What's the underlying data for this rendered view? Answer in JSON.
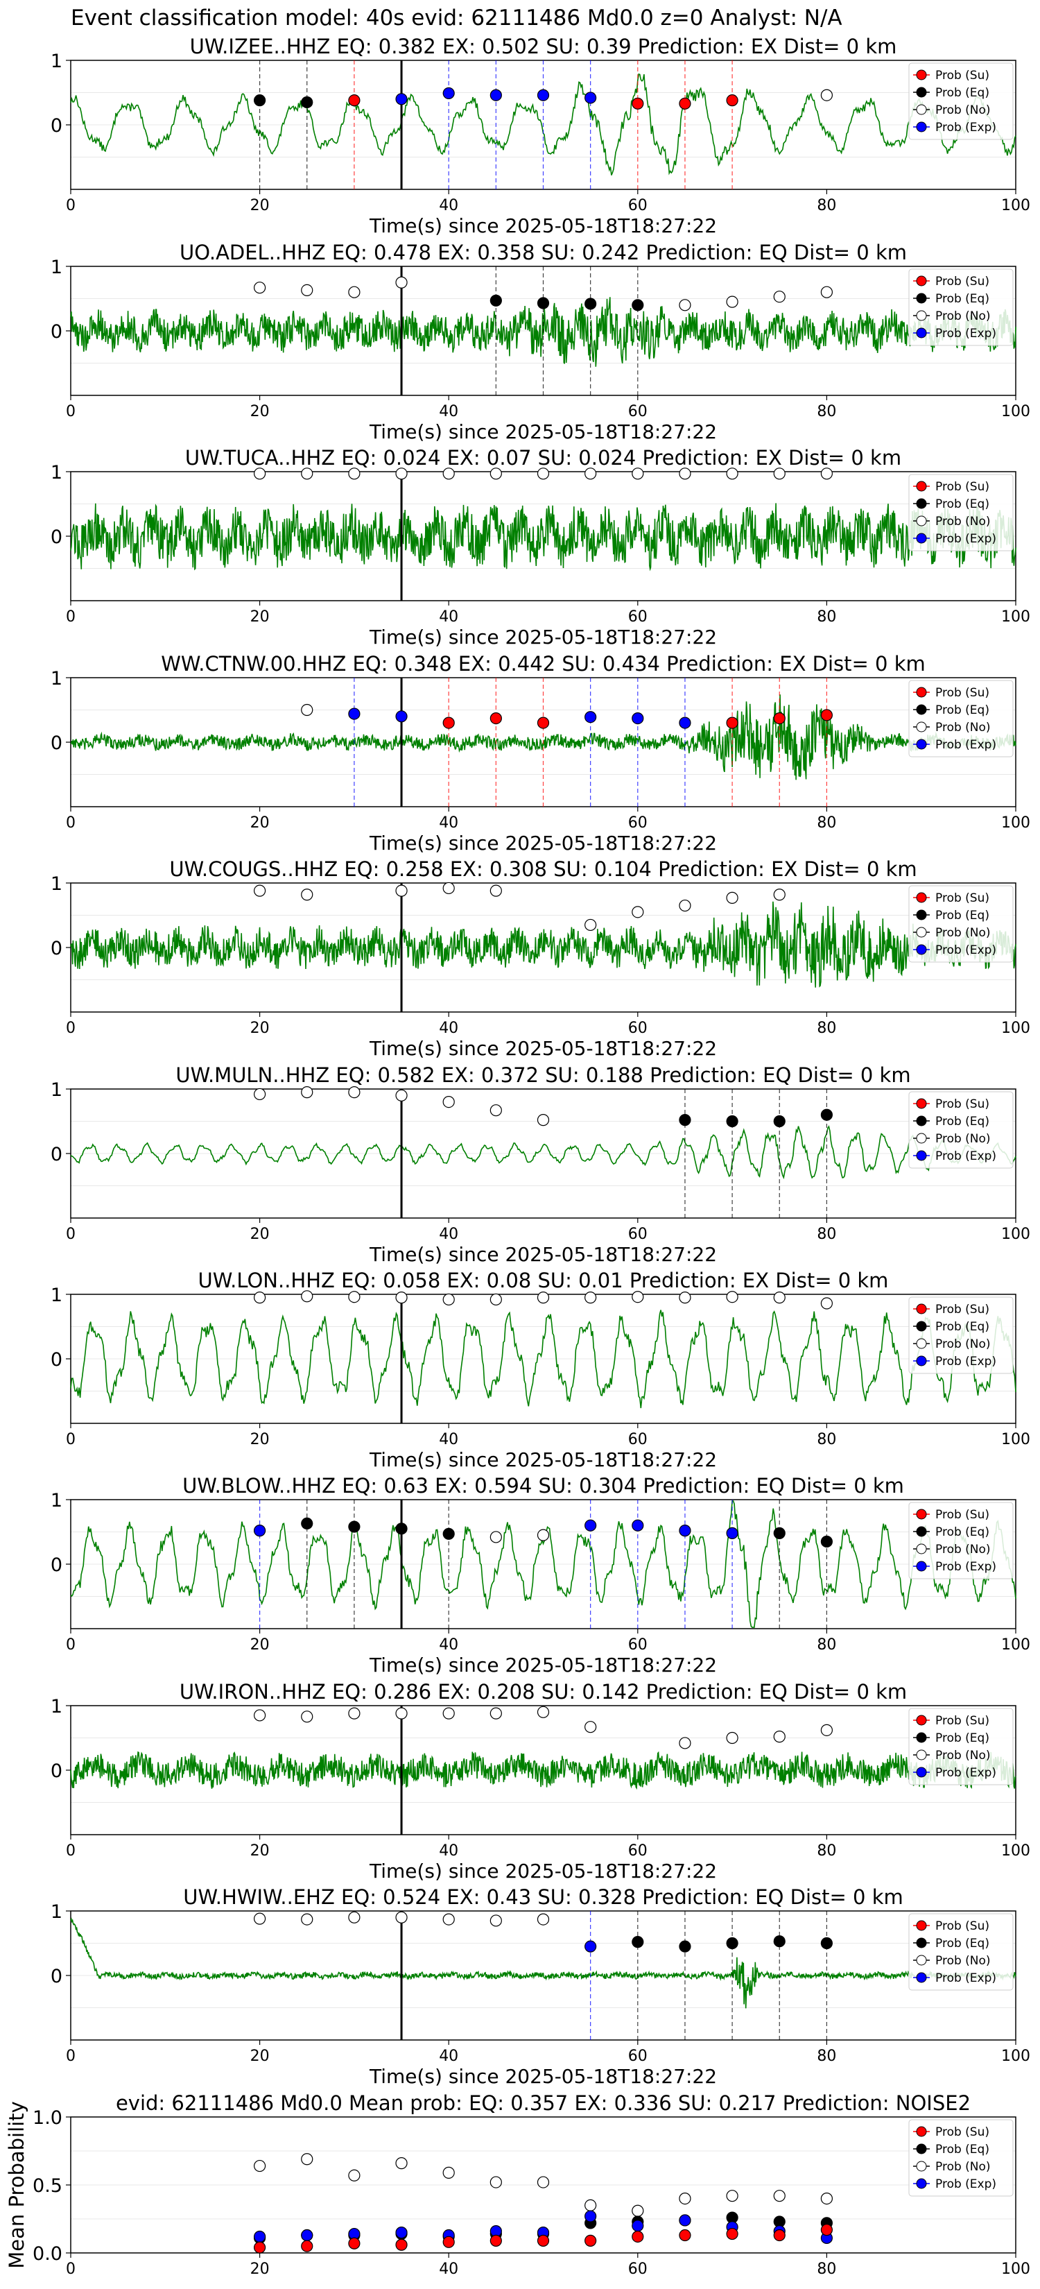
{
  "header": "Event classification model: 40s evid: 62111486 Md0.0 z=0 Analyst: N/A",
  "legend_labels": [
    "Prob (Su)",
    "Prob (Eq)",
    "Prob (No)",
    "Prob (Exp)"
  ],
  "colors": {
    "su": "#ff0000",
    "eq": "#000000",
    "no": "#ffffff",
    "exp": "#0000ff",
    "trace": "#008000",
    "pick": "#000000"
  },
  "chart_data": [
    {
      "type": "line",
      "title": "UW.IZEE..HHZ   EQ: 0.382  EX: 0.502  SU: 0.39   Prediction: EX    Dist= 0 km",
      "xlabel": "Time(s) since 2025-05-18T18:27:22",
      "xlim": [
        0,
        100
      ],
      "ylim": [
        -1,
        1
      ],
      "xticks": [
        "0",
        "20",
        "40",
        "60",
        "80",
        "100"
      ],
      "yticks": [
        "1",
        "0"
      ],
      "trace": {
        "style": "lowfreq",
        "amp": 0.35,
        "period": 6,
        "burst_start": 50,
        "burst_end": 75,
        "burst_amp": 0.3
      },
      "pick_time": 35,
      "points": [
        {
          "x": 20,
          "y": 0.38,
          "cls": "eq"
        },
        {
          "x": 25,
          "y": 0.35,
          "cls": "eq"
        },
        {
          "x": 30,
          "y": 0.38,
          "cls": "su"
        },
        {
          "x": 35,
          "y": 0.4,
          "cls": "exp"
        },
        {
          "x": 40,
          "y": 0.49,
          "cls": "exp"
        },
        {
          "x": 45,
          "y": 0.46,
          "cls": "exp"
        },
        {
          "x": 50,
          "y": 0.46,
          "cls": "exp"
        },
        {
          "x": 55,
          "y": 0.42,
          "cls": "exp"
        },
        {
          "x": 60,
          "y": 0.33,
          "cls": "su"
        },
        {
          "x": 65,
          "y": 0.33,
          "cls": "su"
        },
        {
          "x": 70,
          "y": 0.38,
          "cls": "su"
        },
        {
          "x": 80,
          "y": 0.46,
          "cls": "no"
        }
      ]
    },
    {
      "type": "line",
      "title": "UO.ADEL..HHZ   EQ: 0.478  EX: 0.358  SU: 0.242   Prediction: EQ    Dist= 0 km",
      "xlabel": "Time(s) since 2025-05-18T18:27:22",
      "xlim": [
        0,
        100
      ],
      "ylim": [
        -1,
        1
      ],
      "xticks": [
        "0",
        "20",
        "40",
        "60",
        "80",
        "100"
      ],
      "yticks": [
        "1",
        "0"
      ],
      "trace": {
        "style": "noise",
        "amp": 0.3,
        "period": 3,
        "burst_start": 45,
        "burst_end": 65,
        "burst_amp": 0.2
      },
      "pick_time": 35,
      "points": [
        {
          "x": 20,
          "y": 0.67,
          "cls": "no"
        },
        {
          "x": 25,
          "y": 0.63,
          "cls": "no"
        },
        {
          "x": 30,
          "y": 0.6,
          "cls": "no"
        },
        {
          "x": 35,
          "y": 0.75,
          "cls": "no"
        },
        {
          "x": 45,
          "y": 0.47,
          "cls": "eq"
        },
        {
          "x": 50,
          "y": 0.43,
          "cls": "eq"
        },
        {
          "x": 55,
          "y": 0.42,
          "cls": "eq"
        },
        {
          "x": 60,
          "y": 0.4,
          "cls": "eq"
        },
        {
          "x": 65,
          "y": 0.4,
          "cls": "no"
        },
        {
          "x": 70,
          "y": 0.45,
          "cls": "no"
        },
        {
          "x": 75,
          "y": 0.53,
          "cls": "no"
        },
        {
          "x": 80,
          "y": 0.6,
          "cls": "no"
        }
      ]
    },
    {
      "type": "line",
      "title": "UW.TUCA..HHZ   EQ: 0.024  EX: 0.07  SU: 0.024   Prediction: EX    Dist= 0 km",
      "xlabel": "Time(s) since 2025-05-18T18:27:22",
      "xlim": [
        0,
        100
      ],
      "ylim": [
        -1,
        1
      ],
      "xticks": [
        "0",
        "20",
        "40",
        "60",
        "80",
        "100"
      ],
      "yticks": [
        "1",
        "0"
      ],
      "trace": {
        "style": "noise",
        "amp": 0.45,
        "period": 3,
        "burst_start": 0,
        "burst_end": 0,
        "burst_amp": 0
      },
      "pick_time": 35,
      "points": [
        {
          "x": 20,
          "y": 0.97,
          "cls": "no"
        },
        {
          "x": 25,
          "y": 0.97,
          "cls": "no"
        },
        {
          "x": 30,
          "y": 0.97,
          "cls": "no"
        },
        {
          "x": 35,
          "y": 0.97,
          "cls": "no"
        },
        {
          "x": 40,
          "y": 0.97,
          "cls": "no"
        },
        {
          "x": 45,
          "y": 0.97,
          "cls": "no"
        },
        {
          "x": 50,
          "y": 0.97,
          "cls": "no"
        },
        {
          "x": 55,
          "y": 0.97,
          "cls": "no"
        },
        {
          "x": 60,
          "y": 0.97,
          "cls": "no"
        },
        {
          "x": 65,
          "y": 0.97,
          "cls": "no"
        },
        {
          "x": 70,
          "y": 0.97,
          "cls": "no"
        },
        {
          "x": 75,
          "y": 0.97,
          "cls": "no"
        },
        {
          "x": 80,
          "y": 0.97,
          "cls": "no"
        }
      ]
    },
    {
      "type": "line",
      "title": "WW.CTNW.00.HHZ   EQ: 0.348  EX: 0.442  SU: 0.434   Prediction: EX    Dist= 0 km",
      "xlabel": "Time(s) since 2025-05-18T18:27:22",
      "xlim": [
        0,
        100
      ],
      "ylim": [
        -1,
        1
      ],
      "xticks": [
        "0",
        "20",
        "40",
        "60",
        "80",
        "100"
      ],
      "yticks": [
        "1",
        "0"
      ],
      "trace": {
        "style": "noise",
        "amp": 0.12,
        "period": 4,
        "burst_start": 65,
        "burst_end": 85,
        "burst_amp": 0.55
      },
      "pick_time": 35,
      "points": [
        {
          "x": 25,
          "y": 0.5,
          "cls": "no"
        },
        {
          "x": 30,
          "y": 0.44,
          "cls": "exp"
        },
        {
          "x": 35,
          "y": 0.4,
          "cls": "exp"
        },
        {
          "x": 40,
          "y": 0.3,
          "cls": "su"
        },
        {
          "x": 45,
          "y": 0.37,
          "cls": "su"
        },
        {
          "x": 50,
          "y": 0.3,
          "cls": "su"
        },
        {
          "x": 55,
          "y": 0.39,
          "cls": "exp"
        },
        {
          "x": 60,
          "y": 0.37,
          "cls": "exp"
        },
        {
          "x": 65,
          "y": 0.3,
          "cls": "exp"
        },
        {
          "x": 70,
          "y": 0.3,
          "cls": "su"
        },
        {
          "x": 75,
          "y": 0.37,
          "cls": "su"
        },
        {
          "x": 80,
          "y": 0.42,
          "cls": "su"
        }
      ]
    },
    {
      "type": "line",
      "title": "UW.COUGS..HHZ   EQ: 0.258  EX: 0.308  SU: 0.104   Prediction: EX    Dist= 0 km",
      "xlabel": "Time(s) since 2025-05-18T18:27:22",
      "xlim": [
        0,
        100
      ],
      "ylim": [
        -1,
        1
      ],
      "xticks": [
        "0",
        "20",
        "40",
        "60",
        "80",
        "100"
      ],
      "yticks": [
        "1",
        "0"
      ],
      "trace": {
        "style": "noise",
        "amp": 0.3,
        "period": 3,
        "burst_start": 65,
        "burst_end": 90,
        "burst_amp": 0.35
      },
      "pick_time": 35,
      "points": [
        {
          "x": 20,
          "y": 0.88,
          "cls": "no"
        },
        {
          "x": 25,
          "y": 0.82,
          "cls": "no"
        },
        {
          "x": 35,
          "y": 0.88,
          "cls": "no"
        },
        {
          "x": 40,
          "y": 0.92,
          "cls": "no"
        },
        {
          "x": 45,
          "y": 0.88,
          "cls": "no"
        },
        {
          "x": 55,
          "y": 0.35,
          "cls": "no"
        },
        {
          "x": 60,
          "y": 0.55,
          "cls": "no"
        },
        {
          "x": 65,
          "y": 0.65,
          "cls": "no"
        },
        {
          "x": 70,
          "y": 0.77,
          "cls": "no"
        },
        {
          "x": 75,
          "y": 0.82,
          "cls": "no"
        }
      ]
    },
    {
      "type": "line",
      "title": "UW.MULN..HHZ   EQ: 0.582  EX: 0.372  SU: 0.188   Prediction: EQ    Dist= 0 km",
      "xlabel": "Time(s) since 2025-05-18T18:27:22",
      "xlim": [
        0,
        100
      ],
      "ylim": [
        -1,
        1
      ],
      "xticks": [
        "0",
        "20",
        "40",
        "60",
        "80",
        "100"
      ],
      "yticks": [
        "1",
        "0"
      ],
      "trace": {
        "style": "lowfreq",
        "amp": 0.12,
        "period": 3,
        "burst_start": 60,
        "burst_end": 95,
        "burst_amp": 0.2
      },
      "pick_time": 35,
      "points": [
        {
          "x": 20,
          "y": 0.92,
          "cls": "no"
        },
        {
          "x": 25,
          "y": 0.95,
          "cls": "no"
        },
        {
          "x": 30,
          "y": 0.95,
          "cls": "no"
        },
        {
          "x": 35,
          "y": 0.9,
          "cls": "no"
        },
        {
          "x": 40,
          "y": 0.8,
          "cls": "no"
        },
        {
          "x": 45,
          "y": 0.67,
          "cls": "no"
        },
        {
          "x": 50,
          "y": 0.52,
          "cls": "no"
        },
        {
          "x": 65,
          "y": 0.52,
          "cls": "eq"
        },
        {
          "x": 70,
          "y": 0.5,
          "cls": "eq"
        },
        {
          "x": 75,
          "y": 0.5,
          "cls": "eq"
        },
        {
          "x": 80,
          "y": 0.6,
          "cls": "eq"
        }
      ]
    },
    {
      "type": "line",
      "title": "UW.LON..HHZ   EQ: 0.058  EX: 0.08  SU: 0.01   Prediction: EX    Dist= 0 km",
      "xlabel": "Time(s) since 2025-05-18T18:27:22",
      "xlim": [
        0,
        100
      ],
      "ylim": [
        -1,
        1
      ],
      "xticks": [
        "0",
        "20",
        "40",
        "60",
        "80",
        "100"
      ],
      "yticks": [
        "1",
        "0"
      ],
      "trace": {
        "style": "lowfreq",
        "amp": 0.55,
        "period": 4,
        "burst_start": 0,
        "burst_end": 0,
        "burst_amp": 0
      },
      "pick_time": 35,
      "points": [
        {
          "x": 20,
          "y": 0.95,
          "cls": "no"
        },
        {
          "x": 25,
          "y": 0.97,
          "cls": "no"
        },
        {
          "x": 30,
          "y": 0.96,
          "cls": "no"
        },
        {
          "x": 35,
          "y": 0.95,
          "cls": "no"
        },
        {
          "x": 40,
          "y": 0.92,
          "cls": "no"
        },
        {
          "x": 45,
          "y": 0.92,
          "cls": "no"
        },
        {
          "x": 50,
          "y": 0.95,
          "cls": "no"
        },
        {
          "x": 55,
          "y": 0.95,
          "cls": "no"
        },
        {
          "x": 60,
          "y": 0.96,
          "cls": "no"
        },
        {
          "x": 65,
          "y": 0.95,
          "cls": "no"
        },
        {
          "x": 70,
          "y": 0.96,
          "cls": "no"
        },
        {
          "x": 75,
          "y": 0.95,
          "cls": "no"
        },
        {
          "x": 80,
          "y": 0.86,
          "cls": "no"
        }
      ]
    },
    {
      "type": "line",
      "title": "UW.BLOW..HHZ   EQ: 0.63  EX: 0.594  SU: 0.304   Prediction: EQ    Dist= 0 km",
      "xlabel": "Time(s) since 2025-05-18T18:27:22",
      "xlim": [
        0,
        100
      ],
      "ylim": [
        -1,
        1
      ],
      "xticks": [
        "0",
        "20",
        "40",
        "60",
        "80",
        "100"
      ],
      "yticks": [
        "1",
        "0"
      ],
      "trace": {
        "style": "lowfreq",
        "amp": 0.5,
        "period": 4,
        "burst_start": 68,
        "burst_end": 75,
        "burst_amp": 0.4
      },
      "pick_time": 35,
      "points": [
        {
          "x": 20,
          "y": 0.52,
          "cls": "exp"
        },
        {
          "x": 25,
          "y": 0.63,
          "cls": "eq"
        },
        {
          "x": 30,
          "y": 0.58,
          "cls": "eq"
        },
        {
          "x": 35,
          "y": 0.55,
          "cls": "eq"
        },
        {
          "x": 40,
          "y": 0.47,
          "cls": "eq"
        },
        {
          "x": 45,
          "y": 0.42,
          "cls": "no"
        },
        {
          "x": 50,
          "y": 0.45,
          "cls": "no"
        },
        {
          "x": 55,
          "y": 0.6,
          "cls": "exp"
        },
        {
          "x": 60,
          "y": 0.6,
          "cls": "exp"
        },
        {
          "x": 65,
          "y": 0.52,
          "cls": "exp"
        },
        {
          "x": 70,
          "y": 0.48,
          "cls": "exp"
        },
        {
          "x": 75,
          "y": 0.48,
          "cls": "eq"
        },
        {
          "x": 80,
          "y": 0.35,
          "cls": "eq"
        }
      ]
    },
    {
      "type": "line",
      "title": "UW.IRON..HHZ   EQ: 0.286  EX: 0.208  SU: 0.142   Prediction: EQ    Dist= 0 km",
      "xlabel": "Time(s) since 2025-05-18T18:27:22",
      "xlim": [
        0,
        100
      ],
      "ylim": [
        -1,
        1
      ],
      "xticks": [
        "0",
        "20",
        "40",
        "60",
        "80",
        "100"
      ],
      "yticks": [
        "1",
        "0"
      ],
      "trace": {
        "style": "noise",
        "amp": 0.25,
        "period": 5,
        "burst_start": 0,
        "burst_end": 0,
        "burst_amp": 0
      },
      "pick_time": 35,
      "points": [
        {
          "x": 20,
          "y": 0.85,
          "cls": "no"
        },
        {
          "x": 25,
          "y": 0.83,
          "cls": "no"
        },
        {
          "x": 30,
          "y": 0.88,
          "cls": "no"
        },
        {
          "x": 35,
          "y": 0.88,
          "cls": "no"
        },
        {
          "x": 40,
          "y": 0.88,
          "cls": "no"
        },
        {
          "x": 45,
          "y": 0.88,
          "cls": "no"
        },
        {
          "x": 50,
          "y": 0.9,
          "cls": "no"
        },
        {
          "x": 55,
          "y": 0.67,
          "cls": "no"
        },
        {
          "x": 65,
          "y": 0.42,
          "cls": "no"
        },
        {
          "x": 70,
          "y": 0.5,
          "cls": "no"
        },
        {
          "x": 75,
          "y": 0.52,
          "cls": "no"
        },
        {
          "x": 80,
          "y": 0.62,
          "cls": "no"
        }
      ]
    },
    {
      "type": "line",
      "title": "UW.HWIW..EHZ   EQ: 0.524  EX: 0.43  SU: 0.328   Prediction: EQ    Dist= 0 km",
      "xlabel": "Time(s) since 2025-05-18T18:27:22",
      "xlim": [
        0,
        100
      ],
      "ylim": [
        -1,
        1
      ],
      "xticks": [
        "0",
        "20",
        "40",
        "60",
        "80",
        "100"
      ],
      "yticks": [
        "1",
        "0"
      ],
      "trace": {
        "style": "noise",
        "amp": 0.05,
        "period": 3,
        "burst_start": 70,
        "burst_end": 73,
        "burst_amp": 0.45,
        "spike_start": 0.9
      },
      "pick_time": 35,
      "points": [
        {
          "x": 20,
          "y": 0.88,
          "cls": "no"
        },
        {
          "x": 25,
          "y": 0.87,
          "cls": "no"
        },
        {
          "x": 30,
          "y": 0.9,
          "cls": "no"
        },
        {
          "x": 35,
          "y": 0.9,
          "cls": "no"
        },
        {
          "x": 40,
          "y": 0.87,
          "cls": "no"
        },
        {
          "x": 45,
          "y": 0.85,
          "cls": "no"
        },
        {
          "x": 50,
          "y": 0.87,
          "cls": "no"
        },
        {
          "x": 55,
          "y": 0.45,
          "cls": "exp"
        },
        {
          "x": 60,
          "y": 0.52,
          "cls": "eq"
        },
        {
          "x": 65,
          "y": 0.45,
          "cls": "eq"
        },
        {
          "x": 70,
          "y": 0.5,
          "cls": "eq"
        },
        {
          "x": 75,
          "y": 0.53,
          "cls": "eq"
        },
        {
          "x": 80,
          "y": 0.5,
          "cls": "eq"
        }
      ]
    },
    {
      "type": "scatter",
      "title": "evid: 62111486  Md0.0   Mean prob:   EQ: 0.357  EX: 0.336  SU: 0.217   Prediction: NOISE2",
      "xlabel": "",
      "ylabel": "Mean Probability",
      "xlim": [
        0,
        100
      ],
      "ylim": [
        0,
        1
      ],
      "xticks": [
        "0",
        "20",
        "40",
        "60",
        "80",
        "100"
      ],
      "yticks": [
        "1.0",
        "0.5",
        "0.0"
      ],
      "series": [
        {
          "name": "Prob (No)",
          "cls": "no",
          "x": [
            20,
            25,
            30,
            35,
            40,
            45,
            50,
            55,
            60,
            65,
            70,
            75,
            80
          ],
          "y": [
            0.64,
            0.69,
            0.57,
            0.66,
            0.59,
            0.52,
            0.52,
            0.35,
            0.31,
            0.4,
            0.42,
            0.42,
            0.4
          ]
        },
        {
          "name": "Prob (Eq)",
          "cls": "eq",
          "x": [
            20,
            25,
            30,
            35,
            40,
            45,
            50,
            55,
            60,
            65,
            70,
            75,
            80
          ],
          "y": [
            0.11,
            0.13,
            0.13,
            0.14,
            0.12,
            0.14,
            0.14,
            0.22,
            0.23,
            0.24,
            0.26,
            0.23,
            0.22
          ]
        },
        {
          "name": "Prob (Exp)",
          "cls": "exp",
          "x": [
            20,
            25,
            30,
            35,
            40,
            45,
            50,
            55,
            60,
            65,
            70,
            75,
            80
          ],
          "y": [
            0.12,
            0.13,
            0.14,
            0.15,
            0.13,
            0.16,
            0.15,
            0.27,
            0.2,
            0.24,
            0.19,
            0.16,
            0.11
          ]
        },
        {
          "name": "Prob (Su)",
          "cls": "su",
          "x": [
            20,
            25,
            30,
            35,
            40,
            45,
            50,
            55,
            60,
            65,
            70,
            75,
            80
          ],
          "y": [
            0.04,
            0.05,
            0.07,
            0.06,
            0.08,
            0.09,
            0.09,
            0.09,
            0.12,
            0.13,
            0.14,
            0.13,
            0.17
          ]
        }
      ]
    }
  ]
}
